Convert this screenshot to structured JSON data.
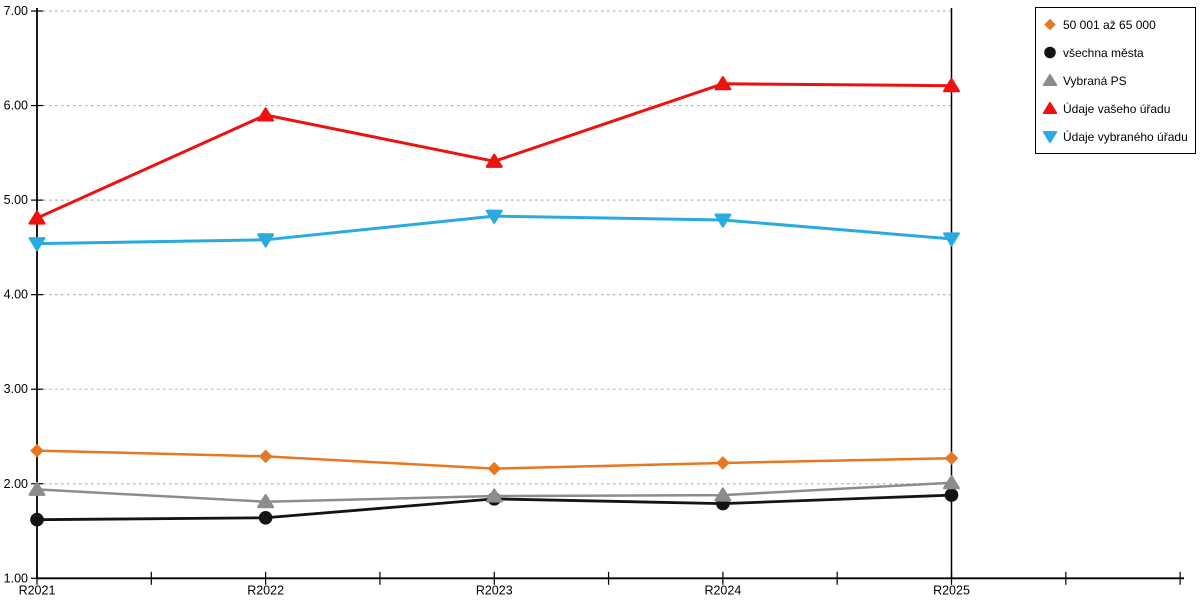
{
  "chart_data": {
    "type": "line",
    "title": "",
    "xlabel": "",
    "ylabel": "",
    "categories": [
      "R2021",
      "R2022",
      "R2023",
      "R2024",
      "R2025"
    ],
    "series": [
      {
        "name": "50 001 až 65 000",
        "marker": "diamond",
        "color": "#E87722",
        "values": [
          2.35,
          2.29,
          2.16,
          2.22,
          2.27
        ]
      },
      {
        "name": "všechna města",
        "marker": "circle",
        "color": "#141414",
        "values": [
          1.62,
          1.64,
          1.84,
          1.79,
          1.88
        ]
      },
      {
        "name": "Vybraná PS",
        "marker": "triangle-up",
        "color": "#8C8C8C",
        "values": [
          1.94,
          1.81,
          1.87,
          1.88,
          2.01
        ]
      },
      {
        "name": "Údaje vašeho úřadu",
        "marker": "triangle-up",
        "color": "#EE1111",
        "values": [
          4.81,
          5.9,
          5.41,
          6.23,
          6.21
        ]
      },
      {
        "name": "Údaje vybraného úřadu",
        "marker": "triangle-down",
        "color": "#29ABE2",
        "values": [
          4.54,
          4.58,
          4.83,
          4.79,
          4.59
        ]
      }
    ],
    "ylim": [
      1,
      7
    ],
    "ytick_labels": [
      "1.00",
      "2.00",
      "3.00",
      "4.00",
      "5.00",
      "6.00",
      "7.00"
    ],
    "grid": "horizontal-dotted",
    "gridline_color": "#B3B3B3",
    "axis_color": "#000000",
    "legend_position": "outside-top-right"
  }
}
